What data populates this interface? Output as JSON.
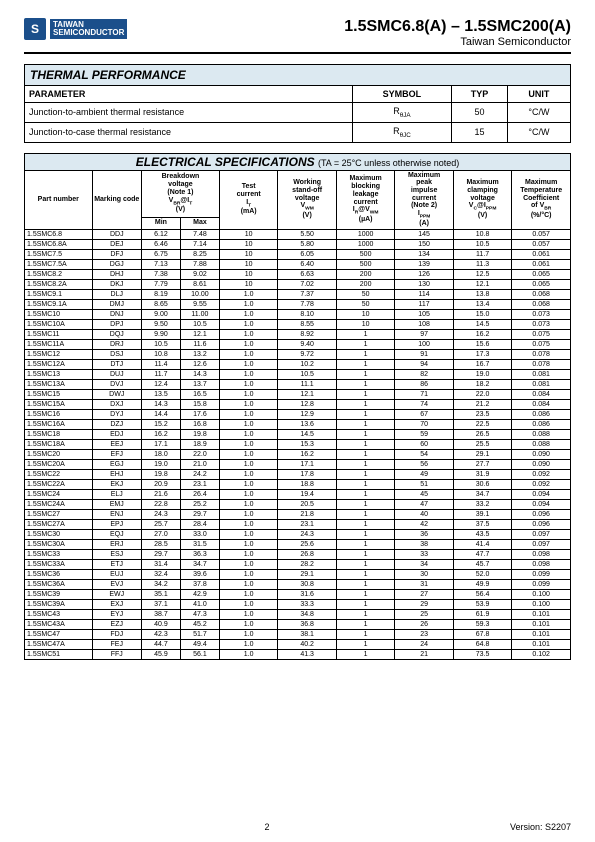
{
  "header": {
    "logo_mark": "S",
    "logo_line1": "TAIWAN",
    "logo_line2": "SEMICONDUCTOR",
    "title_main": "1.5SMC6.8(A) – 1.5SMC200(A)",
    "title_sub": "Taiwan Semiconductor"
  },
  "thermal": {
    "section_title": "THERMAL PERFORMANCE",
    "headers": [
      "PARAMETER",
      "SYMBOL",
      "TYP",
      "UNIT"
    ],
    "rows": [
      {
        "param": "Junction-to-ambient thermal resistance",
        "symbol": "RθJA",
        "typ": "50",
        "unit": "°C/W"
      },
      {
        "param": "Junction-to-case thermal resistance",
        "symbol": "RθJC",
        "typ": "15",
        "unit": "°C/W"
      }
    ]
  },
  "electrical": {
    "section_title": "ELECTRICAL SPECIFICATIONS",
    "section_note": "(TA = 25°C unless otherwise noted)",
    "col_headers": {
      "part": "Part number",
      "marking": "Marking code",
      "breakdown": "Breakdown voltage (Note 1) VBR@IT (V)",
      "min": "Min",
      "max": "Max",
      "test": "Test current IT (mA)",
      "working": "Working stand-off voltage VWM (V)",
      "leakage": "Maximum blocking leakage current IR@VWM (µA)",
      "peak": "Maximum peak impulse current (Note 2) IPPM (A)",
      "clamp": "Maximum clamping voltage VC@IPPM (V)",
      "temp": "Maximum Temperature Coefficient of VBR (%/°C)"
    },
    "rows": [
      [
        "1.5SMC6.8",
        "DDJ",
        "6.12",
        "7.48",
        "10",
        "5.50",
        "1000",
        "145",
        "10.8",
        "0.057"
      ],
      [
        "1.5SMC6.8A",
        "DEJ",
        "6.46",
        "7.14",
        "10",
        "5.80",
        "1000",
        "150",
        "10.5",
        "0.057"
      ],
      [
        "1.5SMC7.5",
        "DFJ",
        "6.75",
        "8.25",
        "10",
        "6.05",
        "500",
        "134",
        "11.7",
        "0.061"
      ],
      [
        "1.5SMC7.5A",
        "DGJ",
        "7.13",
        "7.88",
        "10",
        "6.40",
        "500",
        "139",
        "11.3",
        "0.061"
      ],
      [
        "1.5SMC8.2",
        "DHJ",
        "7.38",
        "9.02",
        "10",
        "6.63",
        "200",
        "126",
        "12.5",
        "0.065"
      ],
      [
        "1.5SMC8.2A",
        "DKJ",
        "7.79",
        "8.61",
        "10",
        "7.02",
        "200",
        "130",
        "12.1",
        "0.065"
      ],
      [
        "1.5SMC9.1",
        "DLJ",
        "8.19",
        "10.00",
        "1.0",
        "7.37",
        "50",
        "114",
        "13.8",
        "0.068"
      ],
      [
        "1.5SMC9.1A",
        "DMJ",
        "8.65",
        "9.55",
        "1.0",
        "7.78",
        "50",
        "117",
        "13.4",
        "0.068"
      ],
      [
        "1.5SMC10",
        "DNJ",
        "9.00",
        "11.00",
        "1.0",
        "8.10",
        "10",
        "105",
        "15.0",
        "0.073"
      ],
      [
        "1.5SMC10A",
        "DPJ",
        "9.50",
        "10.5",
        "1.0",
        "8.55",
        "10",
        "108",
        "14.5",
        "0.073"
      ],
      [
        "1.5SMC11",
        "DQJ",
        "9.90",
        "12.1",
        "1.0",
        "8.92",
        "1",
        "97",
        "16.2",
        "0.075"
      ],
      [
        "1.5SMC11A",
        "DRJ",
        "10.5",
        "11.6",
        "1.0",
        "9.40",
        "1",
        "100",
        "15.6",
        "0.075"
      ],
      [
        "1.5SMC12",
        "DSJ",
        "10.8",
        "13.2",
        "1.0",
        "9.72",
        "1",
        "91",
        "17.3",
        "0.078"
      ],
      [
        "1.5SMC12A",
        "DTJ",
        "11.4",
        "12.6",
        "1.0",
        "10.2",
        "1",
        "94",
        "16.7",
        "0.078"
      ],
      [
        "1.5SMC13",
        "DUJ",
        "11.7",
        "14.3",
        "1.0",
        "10.5",
        "1",
        "82",
        "19.0",
        "0.081"
      ],
      [
        "1.5SMC13A",
        "DVJ",
        "12.4",
        "13.7",
        "1.0",
        "11.1",
        "1",
        "86",
        "18.2",
        "0.081"
      ],
      [
        "1.5SMC15",
        "DWJ",
        "13.5",
        "16.5",
        "1.0",
        "12.1",
        "1",
        "71",
        "22.0",
        "0.084"
      ],
      [
        "1.5SMC15A",
        "DXJ",
        "14.3",
        "15.8",
        "1.0",
        "12.8",
        "1",
        "74",
        "21.2",
        "0.084"
      ],
      [
        "1.5SMC16",
        "DYJ",
        "14.4",
        "17.6",
        "1.0",
        "12.9",
        "1",
        "67",
        "23.5",
        "0.086"
      ],
      [
        "1.5SMC16A",
        "DZJ",
        "15.2",
        "16.8",
        "1.0",
        "13.6",
        "1",
        "70",
        "22.5",
        "0.086"
      ],
      [
        "1.5SMC18",
        "EDJ",
        "16.2",
        "19.8",
        "1.0",
        "14.5",
        "1",
        "59",
        "26.5",
        "0.088"
      ],
      [
        "1.5SMC18A",
        "EEJ",
        "17.1",
        "18.9",
        "1.0",
        "15.3",
        "1",
        "60",
        "25.5",
        "0.088"
      ],
      [
        "1.5SMC20",
        "EFJ",
        "18.0",
        "22.0",
        "1.0",
        "16.2",
        "1",
        "54",
        "29.1",
        "0.090"
      ],
      [
        "1.5SMC20A",
        "EGJ",
        "19.0",
        "21.0",
        "1.0",
        "17.1",
        "1",
        "56",
        "27.7",
        "0.090"
      ],
      [
        "1.5SMC22",
        "EHJ",
        "19.8",
        "24.2",
        "1.0",
        "17.8",
        "1",
        "49",
        "31.9",
        "0.092"
      ],
      [
        "1.5SMC22A",
        "EKJ",
        "20.9",
        "23.1",
        "1.0",
        "18.8",
        "1",
        "51",
        "30.6",
        "0.092"
      ],
      [
        "1.5SMC24",
        "ELJ",
        "21.6",
        "26.4",
        "1.0",
        "19.4",
        "1",
        "45",
        "34.7",
        "0.094"
      ],
      [
        "1.5SMC24A",
        "EMJ",
        "22.8",
        "25.2",
        "1.0",
        "20.5",
        "1",
        "47",
        "33.2",
        "0.094"
      ],
      [
        "1.5SMC27",
        "ENJ",
        "24.3",
        "29.7",
        "1.0",
        "21.8",
        "1",
        "40",
        "39.1",
        "0.096"
      ],
      [
        "1.5SMC27A",
        "EPJ",
        "25.7",
        "28.4",
        "1.0",
        "23.1",
        "1",
        "42",
        "37.5",
        "0.096"
      ],
      [
        "1.5SMC30",
        "EQJ",
        "27.0",
        "33.0",
        "1.0",
        "24.3",
        "1",
        "36",
        "43.5",
        "0.097"
      ],
      [
        "1.5SMC30A",
        "ERJ",
        "28.5",
        "31.5",
        "1.0",
        "25.6",
        "1",
        "38",
        "41.4",
        "0.097"
      ],
      [
        "1.5SMC33",
        "ESJ",
        "29.7",
        "36.3",
        "1.0",
        "26.8",
        "1",
        "33",
        "47.7",
        "0.098"
      ],
      [
        "1.5SMC33A",
        "ETJ",
        "31.4",
        "34.7",
        "1.0",
        "28.2",
        "1",
        "34",
        "45.7",
        "0.098"
      ],
      [
        "1.5SMC36",
        "EUJ",
        "32.4",
        "39.6",
        "1.0",
        "29.1",
        "1",
        "30",
        "52.0",
        "0.099"
      ],
      [
        "1.5SMC36A",
        "EVJ",
        "34.2",
        "37.8",
        "1.0",
        "30.8",
        "1",
        "31",
        "49.9",
        "0.099"
      ],
      [
        "1.5SMC39",
        "EWJ",
        "35.1",
        "42.9",
        "1.0",
        "31.6",
        "1",
        "27",
        "56.4",
        "0.100"
      ],
      [
        "1.5SMC39A",
        "EXJ",
        "37.1",
        "41.0",
        "1.0",
        "33.3",
        "1",
        "29",
        "53.9",
        "0.100"
      ],
      [
        "1.5SMC43",
        "EYJ",
        "38.7",
        "47.3",
        "1.0",
        "34.8",
        "1",
        "25",
        "61.9",
        "0.101"
      ],
      [
        "1.5SMC43A",
        "EZJ",
        "40.9",
        "45.2",
        "1.0",
        "36.8",
        "1",
        "26",
        "59.3",
        "0.101"
      ],
      [
        "1.5SMC47",
        "FDJ",
        "42.3",
        "51.7",
        "1.0",
        "38.1",
        "1",
        "23",
        "67.8",
        "0.101"
      ],
      [
        "1.5SMC47A",
        "FEJ",
        "44.7",
        "49.4",
        "1.0",
        "40.2",
        "1",
        "24",
        "64.8",
        "0.101"
      ],
      [
        "1.5SMC51",
        "FFJ",
        "45.9",
        "56.1",
        "1.0",
        "41.3",
        "1",
        "21",
        "73.5",
        "0.102"
      ]
    ]
  },
  "footer": {
    "page": "2",
    "version": "Version: S2207"
  },
  "colors": {
    "header_bg": "#dce9f1",
    "brand": "#1b4f8b",
    "border": "#000000",
    "text": "#000000"
  }
}
